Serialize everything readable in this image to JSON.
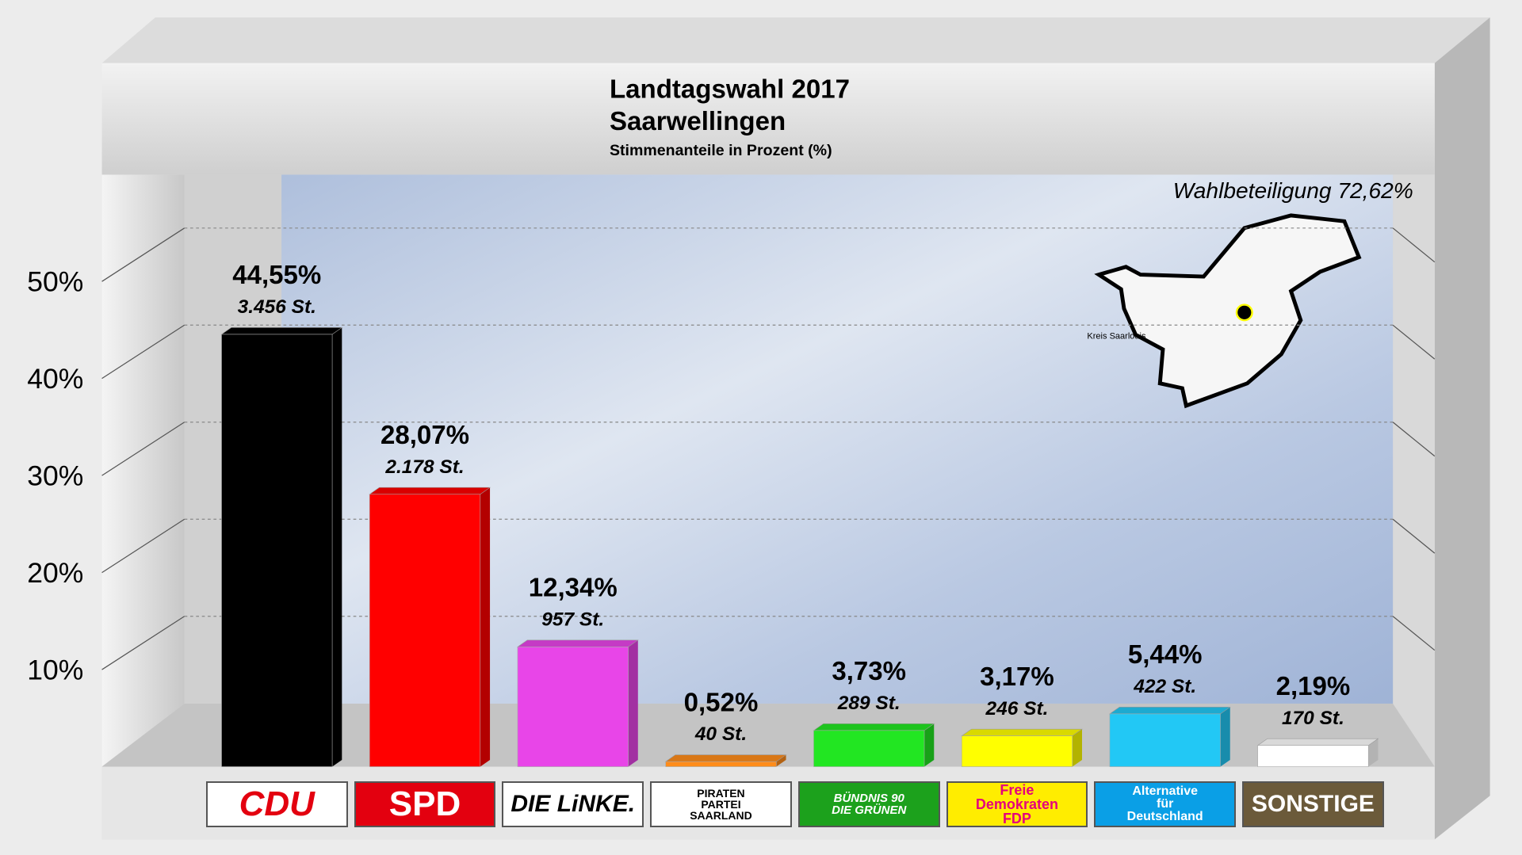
{
  "chart_data": {
    "type": "bar",
    "title": "Landtagswahl 2017",
    "subtitle": "Saarwellingen",
    "y_label": "Stimmenanteile in Prozent (%)",
    "annotation": "Wahlbeteiligung 72,62%",
    "map_label": "Kreis Saarlouis",
    "categories": [
      "CDU",
      "SPD",
      "DIE LiNKE.",
      "PIRATEN\nPARTEI\nSAARLAND",
      "BÜNDNIS 90\nDIE GRÜNEN",
      "Freie\nDemokraten\nFDP",
      "Alternative\nfür\nDeutschland",
      "SONSTIGE"
    ],
    "values": [
      44.55,
      28.07,
      12.34,
      0.52,
      3.73,
      3.17,
      5.44,
      2.19
    ],
    "value_labels": [
      "44,55%",
      "28,07%",
      "12,34%",
      "0,52%",
      "3,73%",
      "3,17%",
      "5,44%",
      "2,19%"
    ],
    "votes": [
      3456,
      2178,
      957,
      40,
      289,
      246,
      422,
      170
    ],
    "vote_labels": [
      "3.456 St.",
      "2.178 St.",
      "957 St.",
      "40 St.",
      "289 St.",
      "246 St.",
      "422 St.",
      "170 St."
    ],
    "colors": [
      "#000000",
      "#ff0000",
      "#e845e8",
      "#ff8c1a",
      "#22e622",
      "#ffff00",
      "#22c8f5",
      "#ffffff"
    ],
    "ylim": [
      0,
      60
    ],
    "yticks": [
      {
        "value": 10,
        "label": "10%"
      },
      {
        "value": 20,
        "label": "20%"
      },
      {
        "value": 30,
        "label": "30%"
      },
      {
        "value": 40,
        "label": "40%"
      },
      {
        "value": 50,
        "label": "50%"
      }
    ],
    "grid": true
  }
}
